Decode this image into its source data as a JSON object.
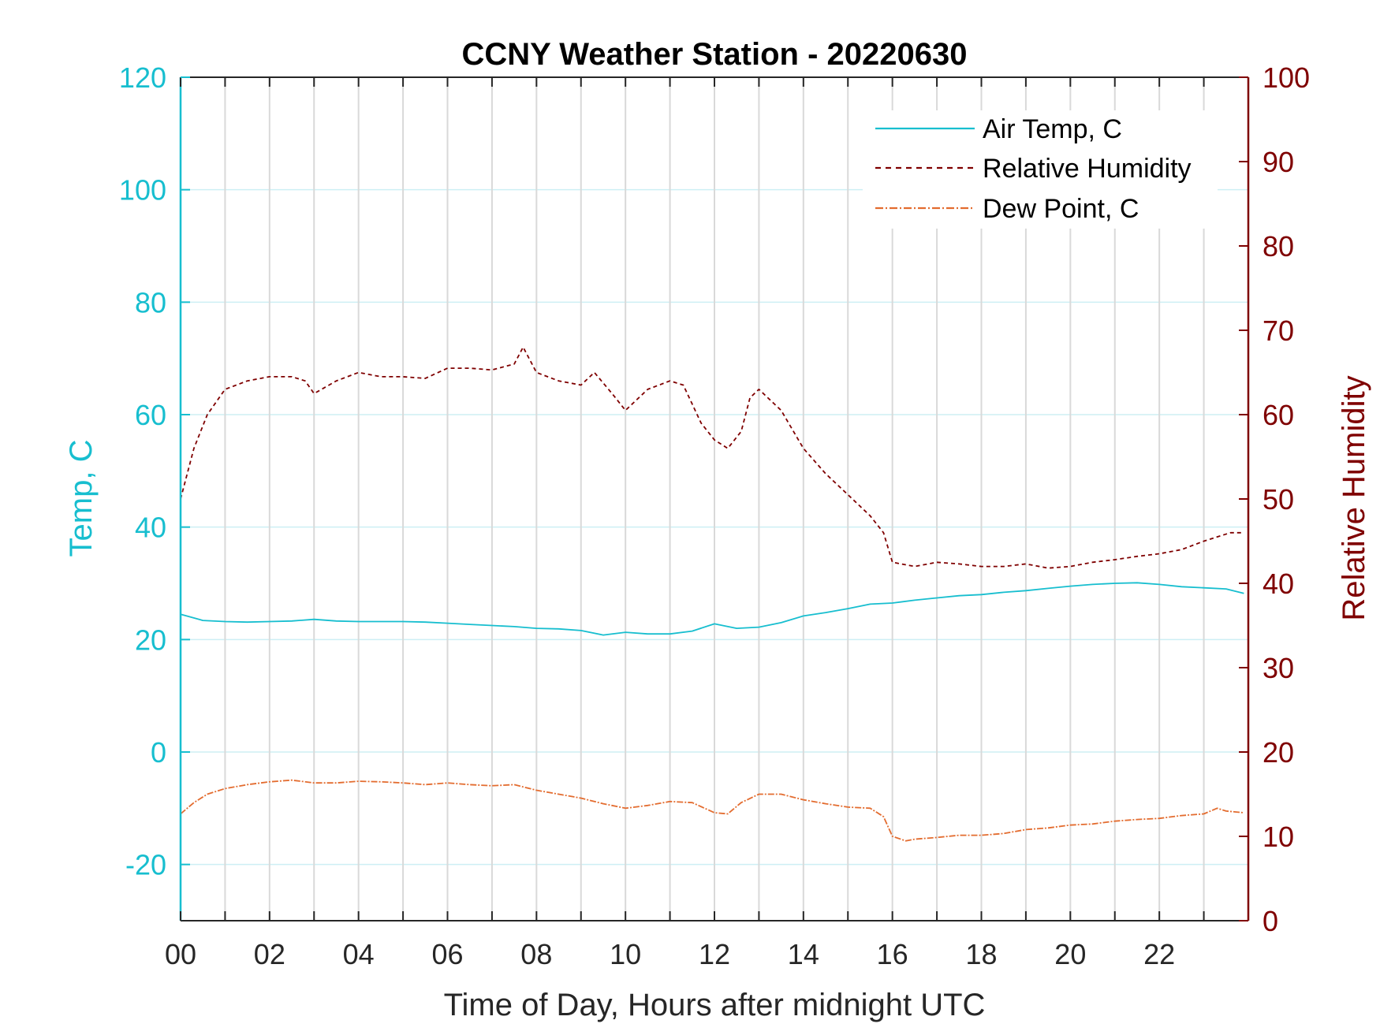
{
  "chart_data": {
    "type": "line",
    "title": "CCNY Weather Station - 20220630",
    "xlabel": "Time of Day, Hours after midnight UTC",
    "ylabel_left": "Temp, C",
    "ylabel_right": "Relative Humidity",
    "xlim": [
      0,
      24
    ],
    "ylim_left": [
      -30,
      120
    ],
    "ylim_right": [
      0,
      100
    ],
    "x_ticks": [
      "00",
      "02",
      "04",
      "06",
      "08",
      "10",
      "12",
      "14",
      "16",
      "18",
      "20",
      "22"
    ],
    "y_left_ticks": [
      "-20",
      "0",
      "20",
      "40",
      "60",
      "80",
      "100",
      "120"
    ],
    "y_right_ticks": [
      "0",
      "10",
      "20",
      "30",
      "40",
      "50",
      "60",
      "70",
      "80",
      "90",
      "100"
    ],
    "grid": "on",
    "legend_position": "top-right",
    "colors": {
      "left_axis": "#17becf",
      "right_axis": "#7f0000",
      "air_temp": "#17becf",
      "relative_humidity": "#7f0000",
      "dew_point": "#e36c2f",
      "grid_x": "#d9d9d9",
      "grid_y": "#cdeff4"
    },
    "series": [
      {
        "name": "Air Temp, C",
        "axis": "left",
        "style": "solid",
        "x": [
          0,
          0.5,
          1,
          1.5,
          2,
          2.5,
          3,
          3.5,
          4,
          4.5,
          5,
          5.5,
          6,
          6.5,
          7,
          7.5,
          8,
          8.5,
          9,
          9.5,
          10,
          10.5,
          11,
          11.5,
          12,
          12.5,
          13,
          13.5,
          14,
          14.5,
          15,
          15.5,
          16,
          16.5,
          17,
          17.5,
          18,
          18.5,
          19,
          19.5,
          20,
          20.5,
          21,
          21.5,
          22,
          22.5,
          23,
          23.5,
          23.9
        ],
        "values": [
          24.5,
          23.4,
          23.2,
          23.1,
          23.2,
          23.3,
          23.6,
          23.3,
          23.2,
          23.2,
          23.2,
          23.1,
          22.9,
          22.7,
          22.5,
          22.3,
          22,
          21.9,
          21.6,
          20.8,
          21.3,
          21,
          21,
          21.5,
          22.8,
          22,
          22.2,
          23,
          24.2,
          24.8,
          25.5,
          26.3,
          26.5,
          27,
          27.4,
          27.8,
          28,
          28.4,
          28.7,
          29.1,
          29.5,
          29.8,
          30,
          30.1,
          29.8,
          29.4,
          29.2,
          29,
          28.2
        ]
      },
      {
        "name": "Relative Humidity",
        "axis": "right",
        "style": "dashed",
        "x": [
          0,
          0.3,
          0.6,
          1,
          1.5,
          2,
          2.5,
          2.8,
          3,
          3.5,
          4,
          4.5,
          5,
          5.5,
          6,
          6.5,
          7,
          7.5,
          7.7,
          8,
          8.5,
          9,
          9.3,
          9.7,
          10,
          10.5,
          11,
          11.3,
          11.7,
          12,
          12.3,
          12.6,
          12.8,
          13,
          13.5,
          14,
          14.5,
          15,
          15.5,
          15.8,
          16,
          16.5,
          17,
          17.5,
          18,
          18.5,
          19,
          19.5,
          20,
          20.5,
          21,
          21.5,
          22,
          22.5,
          23,
          23.3,
          23.6,
          23.9
        ],
        "values": [
          50,
          56,
          60,
          63,
          64,
          64.5,
          64.5,
          64,
          62.5,
          64,
          65,
          64.5,
          64.5,
          64.3,
          65.5,
          65.5,
          65.3,
          66,
          68,
          65,
          64,
          63.5,
          65,
          62.5,
          60.5,
          63,
          64,
          63.5,
          59,
          57,
          56,
          58,
          62,
          63,
          60.5,
          56,
          53,
          50.5,
          48,
          46,
          42.5,
          42,
          42.5,
          42.3,
          42,
          42,
          42.3,
          41.8,
          42,
          42.5,
          42.8,
          43.2,
          43.5,
          44,
          45,
          45.5,
          46,
          46
        ]
      },
      {
        "name": "Dew Point, C",
        "axis": "left",
        "style": "dash-dot",
        "x": [
          0,
          0.3,
          0.6,
          1,
          1.5,
          2,
          2.5,
          3,
          3.5,
          4,
          4.5,
          5,
          5.5,
          6,
          6.5,
          7,
          7.5,
          8,
          8.5,
          9,
          9.5,
          10,
          10.5,
          11,
          11.5,
          12,
          12.3,
          12.6,
          13,
          13.5,
          14,
          14.5,
          15,
          15.5,
          15.8,
          16,
          16.3,
          16.5,
          17,
          17.5,
          18,
          18.5,
          19,
          19.5,
          20,
          20.5,
          21,
          21.5,
          22,
          22.5,
          23,
          23.3,
          23.5,
          23.9
        ],
        "values": [
          -11,
          -9,
          -7.5,
          -6.5,
          -5.8,
          -5.3,
          -5,
          -5.5,
          -5.5,
          -5.2,
          -5.3,
          -5.5,
          -5.8,
          -5.5,
          -5.8,
          -6,
          -5.8,
          -6.8,
          -7.5,
          -8.2,
          -9.2,
          -10,
          -9.5,
          -8.8,
          -9,
          -10.8,
          -11,
          -9,
          -7.5,
          -7.5,
          -8.5,
          -9.2,
          -9.8,
          -10,
          -11.5,
          -15,
          -15.8,
          -15.5,
          -15.2,
          -14.8,
          -14.8,
          -14.5,
          -13.8,
          -13.5,
          -13,
          -12.8,
          -12.3,
          -12,
          -11.8,
          -11.3,
          -11,
          -10,
          -10.5,
          -10.8
        ]
      }
    ]
  }
}
